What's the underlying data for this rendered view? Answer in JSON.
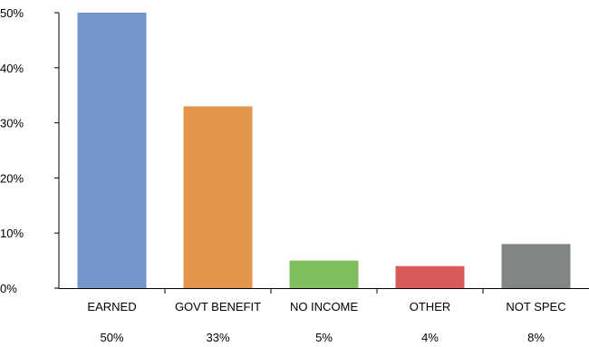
{
  "chart_data": {
    "type": "bar",
    "categories": [
      "EARNED",
      "GOVT BENEFIT",
      "NO INCOME",
      "OTHER",
      "NOT SPEC"
    ],
    "values": [
      50,
      33,
      5,
      4,
      8
    ],
    "value_labels": [
      "50%",
      "33%",
      "5%",
      "4%",
      "8%"
    ],
    "bar_colors": [
      "#7296cc",
      "#e3964b",
      "#80bd5f",
      "#d95c5c",
      "#7f8683"
    ],
    "ylim": [
      0,
      50
    ],
    "yticks": [
      0,
      10,
      20,
      30,
      40,
      50
    ],
    "ytick_labels": [
      "0%",
      "10%",
      "20%",
      "30%",
      "40%",
      "50%"
    ],
    "title": "",
    "xlabel": "",
    "ylabel": "",
    "grid": false,
    "legend": "none"
  }
}
